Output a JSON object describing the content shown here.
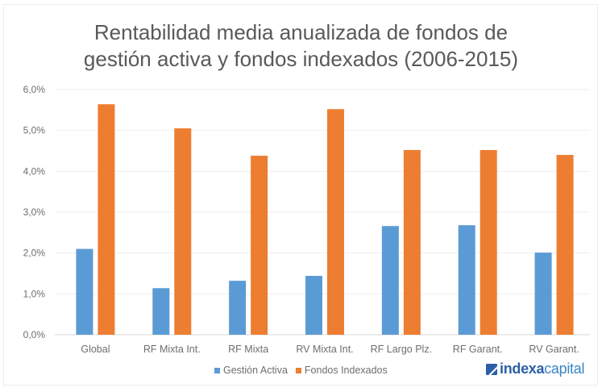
{
  "chart_data": {
    "type": "bar",
    "title": "Rentabilidad media anualizada de fondos de gestión activa y fondos indexados (2006-2015)",
    "title_lines": [
      "Rentabilidad media anualizada de fondos de",
      "gestión activa y fondos indexados (2006-2015)"
    ],
    "xlabel": "",
    "ylabel": "",
    "ylim": [
      0,
      6
    ],
    "yticks": [
      0,
      1,
      2,
      3,
      4,
      5,
      6
    ],
    "ytick_labels": [
      "0,0%",
      "1,0%",
      "2,0%",
      "3,0%",
      "4,0%",
      "5,0%",
      "6,0%"
    ],
    "grid": true,
    "legend_position": "bottom",
    "categories": [
      "Global",
      "RF Mixta Int.",
      "RF Mixta",
      "RV Mixta Int.",
      "RF Largo Plz.",
      "RF Garant.",
      "RV Garant."
    ],
    "series": [
      {
        "name": "Gestión Activa",
        "color": "#5b9bd5",
        "values": [
          2.1,
          1.14,
          1.32,
          1.44,
          2.66,
          2.68,
          2.01
        ]
      },
      {
        "name": "Fondos Indexados",
        "color": "#ed7d31",
        "values": [
          5.64,
          5.05,
          4.38,
          5.52,
          4.52,
          4.52,
          4.4
        ]
      }
    ]
  },
  "branding": {
    "logo_part1": "indexa",
    "logo_part2": "capital",
    "logo_color": "#2d5fa6"
  }
}
